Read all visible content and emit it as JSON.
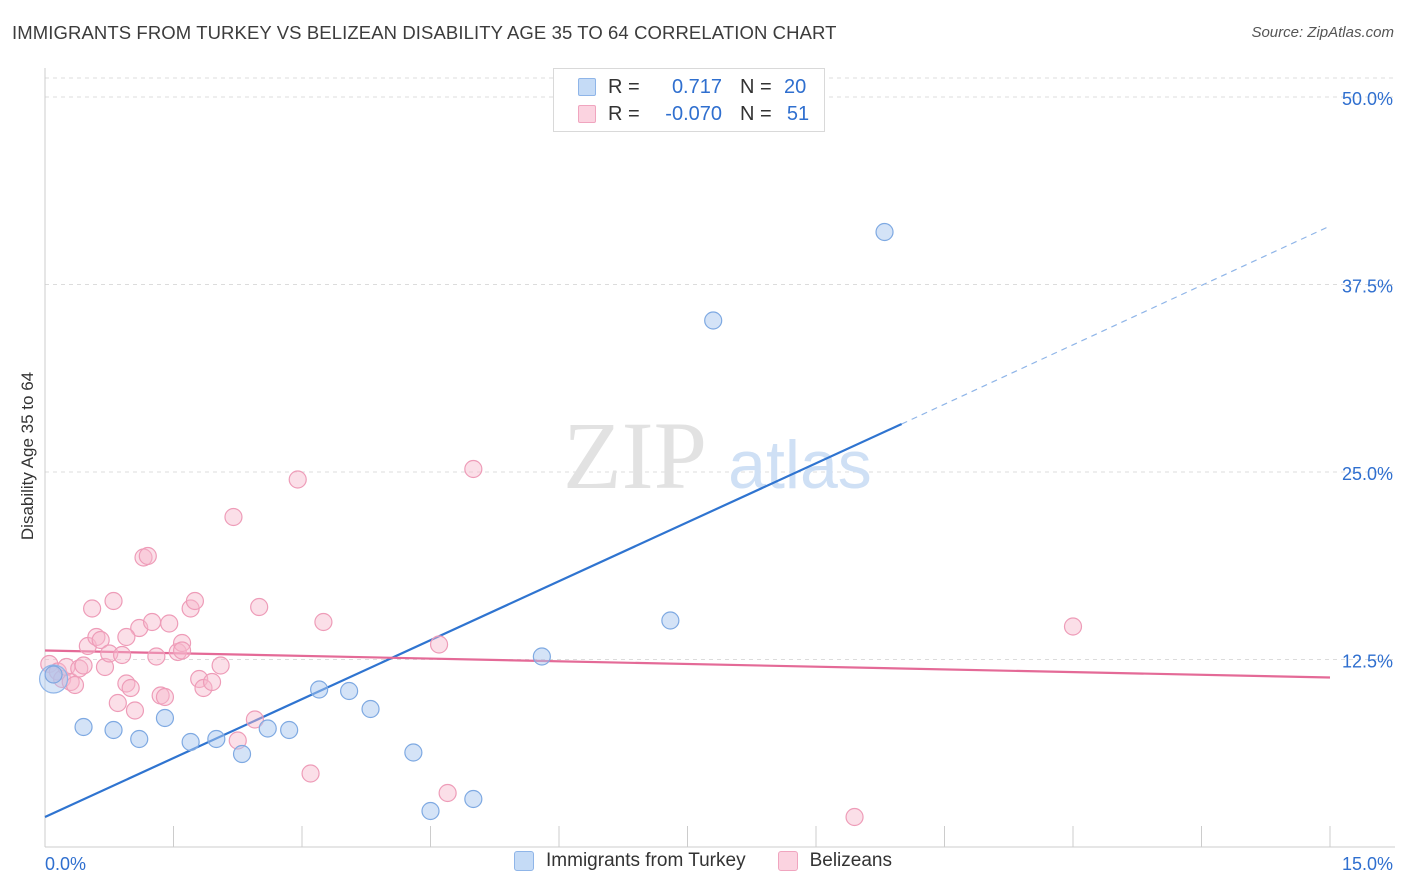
{
  "header": {
    "title": "IMMIGRANTS FROM TURKEY VS BELIZEAN DISABILITY AGE 35 TO 64 CORRELATION CHART",
    "source": "Source: ZipAtlas.com"
  },
  "watermark": {
    "zip": "ZIP",
    "atlas": "atlas"
  },
  "legend_top": {
    "rows": [
      {
        "r_label": "R =",
        "r_value": "0.717",
        "n_label": "N =",
        "n_value": "20",
        "color": "#a9c8f0"
      },
      {
        "r_label": "R =",
        "r_value": "-0.070",
        "n_label": "N =",
        "n_value": "51",
        "color": "#f7b8cc"
      }
    ]
  },
  "legend_bottom": {
    "items": [
      {
        "label": "Immigrants from Turkey",
        "color": "#a9c8f0"
      },
      {
        "label": "Belizeans",
        "color": "#f7b8cc"
      }
    ]
  },
  "chart_data": {
    "type": "scatter",
    "title": "IMMIGRANTS FROM TURKEY VS BELIZEAN DISABILITY AGE 35 TO 64 CORRELATION CHART",
    "xlabel": "",
    "ylabel": "Disability Age 35 to 64",
    "xlim": [
      0,
      15
    ],
    "ylim": [
      0,
      50
    ],
    "x_tick_labels": [
      "0.0%",
      "15.0%"
    ],
    "y_tick_labels": [
      "12.5%",
      "25.0%",
      "37.5%",
      "50.0%"
    ],
    "y_ticks": [
      12.5,
      25,
      37.5,
      50
    ],
    "colors": {
      "turkey": "#a9c8f0",
      "turkey_line": "#2f74d0",
      "belize": "#f7b8cc",
      "belize_line": "#e46a97",
      "axis_text": "#2f6fcf"
    },
    "series": [
      {
        "name": "Immigrants from Turkey",
        "points": [
          [
            0.1,
            11.5
          ],
          [
            0.45,
            8.0
          ],
          [
            0.8,
            7.8
          ],
          [
            1.1,
            7.2
          ],
          [
            1.4,
            8.6
          ],
          [
            1.7,
            7.0
          ],
          [
            2.0,
            7.2
          ],
          [
            2.3,
            6.2
          ],
          [
            2.6,
            7.9
          ],
          [
            2.85,
            7.8
          ],
          [
            3.2,
            10.5
          ],
          [
            3.55,
            10.4
          ],
          [
            3.8,
            9.2
          ],
          [
            4.3,
            6.3
          ],
          [
            4.5,
            2.4
          ],
          [
            5.0,
            3.2
          ],
          [
            5.8,
            12.7
          ],
          [
            7.3,
            15.1
          ],
          [
            7.8,
            35.1
          ],
          [
            9.8,
            41.0
          ]
        ],
        "trendline": {
          "x": [
            0,
            10.0
          ],
          "y": [
            2.0,
            28.2
          ],
          "dashed_x": [
            10.0,
            15.0
          ],
          "dashed_y": [
            28.2,
            41.4
          ]
        }
      },
      {
        "name": "Belizeans",
        "points": [
          [
            0.05,
            12.2
          ],
          [
            0.1,
            11.5
          ],
          [
            0.15,
            11.7
          ],
          [
            0.2,
            11.2
          ],
          [
            0.25,
            12.0
          ],
          [
            0.3,
            11.0
          ],
          [
            0.35,
            10.8
          ],
          [
            0.4,
            11.9
          ],
          [
            0.45,
            12.1
          ],
          [
            0.5,
            13.4
          ],
          [
            0.55,
            15.9
          ],
          [
            0.6,
            14.0
          ],
          [
            0.65,
            13.8
          ],
          [
            0.7,
            12.0
          ],
          [
            0.75,
            12.9
          ],
          [
            0.8,
            16.4
          ],
          [
            0.85,
            9.6
          ],
          [
            0.9,
            12.8
          ],
          [
            0.95,
            10.9
          ],
          [
            1.0,
            10.6
          ],
          [
            1.05,
            9.1
          ],
          [
            1.1,
            14.6
          ],
          [
            1.15,
            19.3
          ],
          [
            1.2,
            19.4
          ],
          [
            1.25,
            15.0
          ],
          [
            1.3,
            12.7
          ],
          [
            1.35,
            10.1
          ],
          [
            1.4,
            10.0
          ],
          [
            1.45,
            14.9
          ],
          [
            1.55,
            13.0
          ],
          [
            1.6,
            13.6
          ],
          [
            1.7,
            15.9
          ],
          [
            1.75,
            16.4
          ],
          [
            1.8,
            11.2
          ],
          [
            1.85,
            10.6
          ],
          [
            1.95,
            11.0
          ],
          [
            2.05,
            12.1
          ],
          [
            2.2,
            22.0
          ],
          [
            2.25,
            7.1
          ],
          [
            2.45,
            8.5
          ],
          [
            2.5,
            16.0
          ],
          [
            2.95,
            24.5
          ],
          [
            3.1,
            4.9
          ],
          [
            3.25,
            15.0
          ],
          [
            4.6,
            13.5
          ],
          [
            4.7,
            3.6
          ],
          [
            5.0,
            25.2
          ],
          [
            9.45,
            2.0
          ],
          [
            12.0,
            14.7
          ],
          [
            1.6,
            13.1
          ],
          [
            0.95,
            14.0
          ]
        ],
        "trendline": {
          "x": [
            0,
            15.0
          ],
          "y": [
            13.1,
            11.3
          ]
        }
      }
    ]
  }
}
